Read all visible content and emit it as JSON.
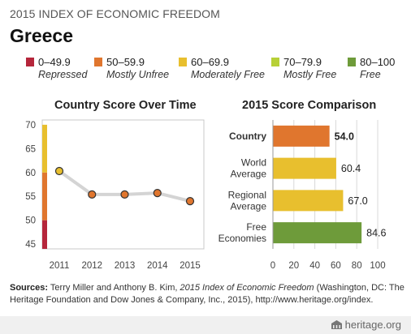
{
  "header": {
    "supertitle": "2015 INDEX OF ECONOMIC FREEDOM",
    "country": "Greece"
  },
  "legend": [
    {
      "range": "0–49.9",
      "label": "Repressed",
      "color": "#b5263b"
    },
    {
      "range": "50–59.9",
      "label": "Mostly Unfree",
      "color": "#e0762e"
    },
    {
      "range": "60–69.9",
      "label": "Moderately Free",
      "color": "#e8bf2e"
    },
    {
      "range": "70–79.9",
      "label": "Mostly Free",
      "color": "#b7d037"
    },
    {
      "range": "80–100",
      "label": "Free",
      "color": "#6e9b3a"
    }
  ],
  "chart_data": [
    {
      "type": "line",
      "title": "Country Score Over Time",
      "x": [
        "2011",
        "2012",
        "2013",
        "2014",
        "2015"
      ],
      "y_ticks": [
        45,
        50,
        55,
        60,
        65,
        70
      ],
      "ylim": [
        44,
        71
      ],
      "series": [
        {
          "values": [
            60.3,
            55.4,
            55.4,
            55.7,
            54.0
          ],
          "color": "#e0762e"
        }
      ],
      "band_colors": {
        "below_50": "#b5263b",
        "50_to_60": "#e0762e",
        "60_to_70": "#e8bf2e"
      },
      "grid": false
    },
    {
      "type": "bar",
      "orientation": "horizontal",
      "title": "2015 Score Comparison",
      "categories": [
        "Country",
        "World Average",
        "Regional Average",
        "Free Economies"
      ],
      "values": [
        54.0,
        60.4,
        67.0,
        84.6
      ],
      "value_labels": [
        "54.0",
        "60.4",
        "67.0",
        "84.6"
      ],
      "colors": [
        "#e0762e",
        "#e8bf2e",
        "#e8bf2e",
        "#6e9b3a"
      ],
      "x_ticks": [
        0,
        20,
        40,
        60,
        80,
        100
      ],
      "xlim": [
        0,
        100
      ],
      "grid": true
    }
  ],
  "sources": {
    "label": "Sources:",
    "text_before": " Terry Miller and Anthony B. Kim, ",
    "title": "2015 Index of Economic Freedom",
    "text_after": " (Washington, DC: The Heritage Foundation and Dow Jones & Company, Inc., 2015), http://www.heritage.org/index."
  },
  "brand": "heritage.org"
}
